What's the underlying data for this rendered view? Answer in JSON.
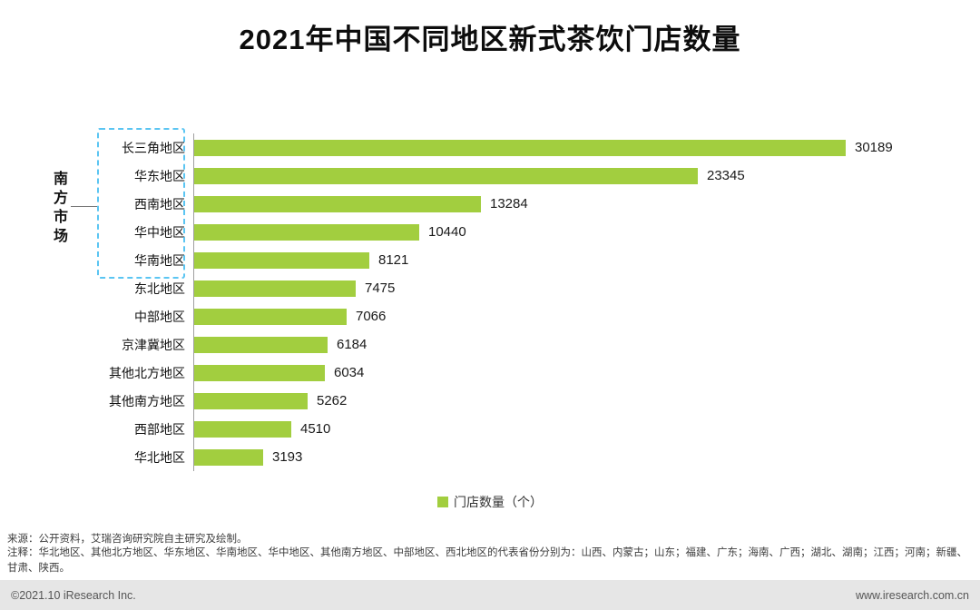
{
  "title": "2021年中国不同地区新式茶饮门店数量",
  "chart_data": {
    "type": "bar",
    "orientation": "horizontal",
    "title": "2021年中国不同地区新式茶饮门店数量",
    "categories": [
      "长三角地区",
      "华东地区",
      "西南地区",
      "华中地区",
      "华南地区",
      "东北地区",
      "中部地区",
      "京津冀地区",
      "其他北方地区",
      "其他南方地区",
      "西部地区",
      "华北地区"
    ],
    "values": [
      30189,
      23345,
      13284,
      10440,
      8121,
      7475,
      7066,
      6184,
      6034,
      5262,
      4510,
      3193
    ],
    "xlabel": "",
    "ylabel": "",
    "xlim": [
      0,
      32000
    ],
    "grid": false,
    "legend_position": "bottom-center",
    "legend": [
      "门店数量（个）"
    ],
    "bar_color": "#a2ce3f",
    "group_annotation": {
      "label": "南方市场",
      "categories_covered": [
        "长三角地区",
        "华东地区",
        "西南地区",
        "华中地区",
        "华南地区"
      ],
      "box_color": "#5bc5f2"
    }
  },
  "legend": {
    "label": "门店数量（个）"
  },
  "footer": {
    "source": "来源：公开资料，艾瑞咨询研究院自主研究及绘制。",
    "note": "注释：华北地区、其他北方地区、华东地区、华南地区、华中地区、其他南方地区、中部地区、西北地区的代表省份分别为：山西、内蒙古；山东；福建、广东；海南、广西；湖北、湖南；江西；河南；新疆、甘肃、陕西。",
    "copyright": "©2021.10 iResearch Inc.",
    "website": "www.iresearch.com.cn"
  }
}
